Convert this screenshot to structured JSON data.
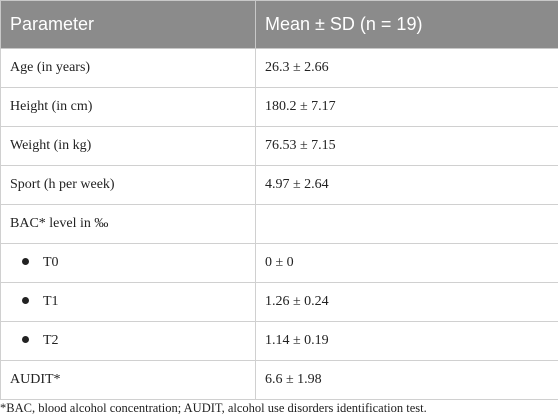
{
  "table": {
    "header": [
      "Parameter",
      "Mean ± SD (n = 19)"
    ],
    "rows": [
      [
        "Age (in years)",
        "26.3 ± 2.66"
      ],
      [
        "Height (in cm)",
        "180.2 ± 7.17"
      ],
      [
        "Weight (in kg)",
        "76.53 ± 7.15"
      ],
      [
        "Sport (h per week)",
        "4.97 ± 2.64"
      ],
      [
        "BAC* level in ‰",
        ""
      ],
      [
        "T0",
        "0 ± 0"
      ],
      [
        "T1",
        "1.26 ± 0.24"
      ],
      [
        "T2",
        "1.14 ± 0.19"
      ],
      [
        "AUDIT*",
        "6.6 ± 1.98"
      ]
    ]
  },
  "footnote": "*BAC, blood alcohol concentration; AUDIT, alcohol use disorders identification test."
}
